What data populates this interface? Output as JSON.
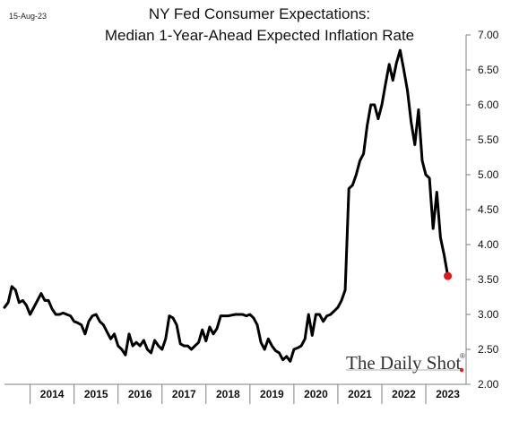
{
  "date_stamp": "15-Aug-23",
  "brand": "The Daily Shot",
  "brand_mark": "®",
  "colors": {
    "line": "#000000",
    "last_point": "#e8141c",
    "axis": "#7f7f7f"
  },
  "chart_data": {
    "type": "line",
    "title": "NY Fed Consumer Expectations:",
    "subtitle": "Median 1-Year-Ahead Expected Inflation Rate",
    "xlabel": "",
    "ylabel": "",
    "ylim": [
      2.0,
      7.0
    ],
    "yticks": [
      "2.00",
      "2.50",
      "3.00",
      "3.50",
      "4.00",
      "4.50",
      "5.00",
      "5.50",
      "6.00",
      "6.50",
      "7.00"
    ],
    "xticks": [
      "2014",
      "2015",
      "2016",
      "2017",
      "2018",
      "2019",
      "2020",
      "2021",
      "2022",
      "2023"
    ],
    "x_range": [
      "2013-06",
      "2023-12"
    ],
    "grid": false,
    "y_axis_position": "right",
    "last_point_marker": true,
    "series": [
      {
        "x": [
          "2013-06",
          "2013-07",
          "2013-08",
          "2013-09",
          "2013-10",
          "2013-11",
          "2013-12",
          "2014-01",
          "2014-02",
          "2014-03",
          "2014-04",
          "2014-05",
          "2014-06",
          "2014-07",
          "2014-08",
          "2014-09",
          "2014-10",
          "2014-11",
          "2014-12",
          "2015-01",
          "2015-02",
          "2015-03",
          "2015-04",
          "2015-05",
          "2015-06",
          "2015-07",
          "2015-08",
          "2015-09",
          "2015-10",
          "2015-11",
          "2015-12",
          "2016-01",
          "2016-02",
          "2016-03",
          "2016-04",
          "2016-05",
          "2016-06",
          "2016-07",
          "2016-08",
          "2016-09",
          "2016-10",
          "2016-11",
          "2016-12",
          "2017-01",
          "2017-02",
          "2017-03",
          "2017-04",
          "2017-05",
          "2017-06",
          "2017-07",
          "2017-08",
          "2017-09",
          "2017-10",
          "2017-11",
          "2017-12",
          "2018-01",
          "2018-02",
          "2018-03",
          "2018-04",
          "2018-05",
          "2018-06",
          "2018-07",
          "2018-08",
          "2018-09",
          "2018-10",
          "2018-11",
          "2018-12",
          "2019-01",
          "2019-02",
          "2019-03",
          "2019-04",
          "2019-05",
          "2019-06",
          "2019-07",
          "2019-08",
          "2019-09",
          "2019-10",
          "2019-11",
          "2019-12",
          "2020-01",
          "2020-02",
          "2020-03",
          "2020-04",
          "2020-05",
          "2020-06",
          "2020-07",
          "2020-08",
          "2020-09",
          "2020-10",
          "2020-11",
          "2020-12",
          "2021-01",
          "2021-02",
          "2021-03",
          "2021-04",
          "2021-05",
          "2021-06",
          "2021-07",
          "2021-08",
          "2021-09",
          "2021-10",
          "2021-11",
          "2021-12",
          "2022-01",
          "2022-02",
          "2022-03",
          "2022-04",
          "2022-05",
          "2022-06",
          "2022-07",
          "2022-08",
          "2022-09",
          "2022-10",
          "2022-11",
          "2022-12",
          "2023-01",
          "2023-02",
          "2023-03",
          "2023-04",
          "2023-05",
          "2023-06",
          "2023-07"
        ],
        "values": [
          3.1,
          3.17,
          3.4,
          3.35,
          3.17,
          3.2,
          3.13,
          3.0,
          3.1,
          3.2,
          3.3,
          3.2,
          3.2,
          3.08,
          3.0,
          3.0,
          3.02,
          3.0,
          2.98,
          2.9,
          2.88,
          2.85,
          2.72,
          2.9,
          2.98,
          3.0,
          2.9,
          2.85,
          2.75,
          2.65,
          2.72,
          2.55,
          2.5,
          2.42,
          2.72,
          2.55,
          2.6,
          2.55,
          2.63,
          2.5,
          2.45,
          2.63,
          2.55,
          2.5,
          2.65,
          2.98,
          2.95,
          2.85,
          2.58,
          2.55,
          2.55,
          2.5,
          2.55,
          2.6,
          2.78,
          2.62,
          2.82,
          2.72,
          2.8,
          2.98,
          2.98,
          2.98,
          2.99,
          3.0,
          3.0,
          3.0,
          2.98,
          3.0,
          2.95,
          2.85,
          2.6,
          2.5,
          2.65,
          2.55,
          2.48,
          2.45,
          2.35,
          2.4,
          2.33,
          2.5,
          2.52,
          2.55,
          2.65,
          3.0,
          2.7,
          3.0,
          3.0,
          2.9,
          2.98,
          3.0,
          3.05,
          3.1,
          3.2,
          3.35,
          4.8,
          4.85,
          5.0,
          5.2,
          5.3,
          5.7,
          6.0,
          6.0,
          5.8,
          6.0,
          6.3,
          6.58,
          6.35,
          6.6,
          6.78,
          6.5,
          6.2,
          5.75,
          5.43,
          5.93,
          5.2,
          5.0,
          4.95,
          4.23,
          4.75,
          4.1,
          3.85,
          3.55
        ]
      }
    ]
  }
}
